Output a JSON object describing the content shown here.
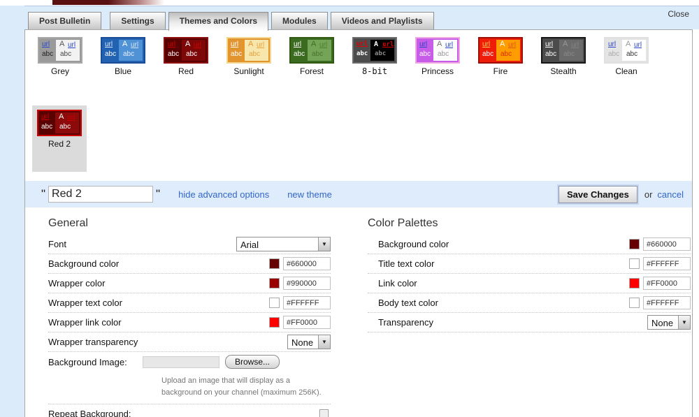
{
  "window": {
    "close": "Close"
  },
  "tabs": [
    {
      "label": "Post Bulletin",
      "active": false
    },
    {
      "label": "Settings",
      "active": false
    },
    {
      "label": "Themes and Colors",
      "active": true
    },
    {
      "label": "Modules",
      "active": false
    },
    {
      "label": "Videos and Playlists",
      "active": false
    }
  ],
  "theme_glyphs": {
    "link": "url",
    "text": "abc",
    "a": "A"
  },
  "themes": [
    {
      "label": "Grey",
      "colors": {
        "border": "#a8a8a8",
        "outer": "#9a9a9a",
        "inner": "#f2f2f2",
        "outer_link": "#2a46c8",
        "outer_text": "#222222",
        "inner_a": "#555555",
        "inner_link": "#2a46c8",
        "inner_text": "#444444"
      }
    },
    {
      "label": "Blue",
      "colors": {
        "border": "#1b4d97",
        "outer": "#2163b2",
        "inner": "#5092d6",
        "outer_link": "#dce6ff",
        "outer_text": "#ffffff",
        "inner_a": "#ffffff",
        "inner_link": "#d8e6f8",
        "inner_text": "#e6eefc"
      }
    },
    {
      "label": "Red",
      "colors": {
        "border": "#8d1111",
        "outer": "#5a0202",
        "inner": "#7e0808",
        "outer_link": "#cc0000",
        "outer_text": "#ffffff",
        "inner_a": "#ffffff",
        "inner_link": "#cc0000",
        "inner_text": "#ffffff"
      }
    },
    {
      "label": "Sunlight",
      "colors": {
        "border": "#f4d78c",
        "outer": "#e2952f",
        "inner": "#f8e7ad",
        "outer_link": "#ffffff",
        "outer_text": "#ffffff",
        "inner_a": "#e2952f",
        "inner_link": "#e8a33d",
        "inner_text": "#e2a23f"
      }
    },
    {
      "label": "Forest",
      "colors": {
        "border": "#2e5b14",
        "outer": "#3a6b1f",
        "inner": "#74a457",
        "outer_link": "#ffffff",
        "outer_text": "#ffffff",
        "inner_a": "#3f7022",
        "inner_link": "#4a7f2a",
        "inner_text": "#47752a"
      }
    },
    {
      "label": "8-bit",
      "mono": true,
      "colors": {
        "border": "#6e6e6e",
        "outer": "#4c4c4c",
        "inner": "#000000",
        "outer_link": "#dd0000",
        "outer_text": "#ffffff",
        "inner_a": "#ffffff",
        "inner_link": "#dd0000",
        "inner_text": "#8a8a8a"
      }
    },
    {
      "label": "Princess",
      "colors": {
        "border": "#f0a8e0",
        "outer": "#c75ce8",
        "inner": "#fcfcfc",
        "outer_link": "#2a46c8",
        "outer_text": "#ffffff",
        "inner_a": "#777777",
        "inner_link": "#2a46c8",
        "inner_text": "#999999"
      }
    },
    {
      "label": "Fire",
      "colors": {
        "border": "#9d0f05",
        "outer": "#ef1c0a",
        "inner": "#ff9c00",
        "outer_link": "#ffd24a",
        "outer_text": "#ffffff",
        "inner_a": "#ffffff",
        "inner_link": "#e05510",
        "inner_text": "#d42b0a"
      }
    },
    {
      "label": "Stealth",
      "colors": {
        "border": "#161616",
        "outer": "#4b4b4b",
        "inner": "#6b6b6b",
        "outer_link": "#ffffff",
        "outer_text": "#ffffff",
        "inner_a": "#9a9a9a",
        "inner_link": "#838383",
        "inner_text": "#888888"
      }
    },
    {
      "label": "Clean",
      "colors": {
        "border": "#e0e0e0",
        "outer": "#e4e4e4",
        "inner": "#ffffff",
        "outer_link": "#2a46c8",
        "outer_text": "#aaaaaa",
        "inner_a": "#999999",
        "inner_link": "#2a46c8",
        "inner_text": "#333333"
      }
    }
  ],
  "selected_theme": {
    "label": "Red 2",
    "colors": {
      "border": "#cc0000",
      "outer": "#5a0202",
      "inner": "#8c0a0a",
      "outer_link": "#cc0000",
      "outer_text": "#ffffff",
      "inner_a": "#ffffff",
      "inner_link": "#cc0000",
      "inner_text": "#ffffff"
    }
  },
  "name_bar": {
    "open_quote": "\"",
    "value": "Red 2",
    "close_quote": "\"",
    "hide_advanced": "hide advanced options",
    "new_theme": "new theme",
    "save": "Save Changes",
    "or": "or",
    "cancel": "cancel"
  },
  "sections": {
    "general": {
      "title": "General",
      "rows": [
        {
          "label": "Font",
          "control": {
            "type": "select",
            "value": "Arial",
            "width": 135
          }
        },
        {
          "label": "Background color",
          "control": {
            "type": "color",
            "hex": "#660000"
          }
        },
        {
          "label": "Wrapper color",
          "control": {
            "type": "color",
            "hex": "#990000"
          }
        },
        {
          "label": "Wrapper text color",
          "control": {
            "type": "color",
            "hex": "#FFFFFF"
          }
        },
        {
          "label": "Wrapper link color",
          "control": {
            "type": "color",
            "hex": "#FF0000"
          }
        },
        {
          "label": "Wrapper transparency",
          "control": {
            "type": "select",
            "value": "None",
            "width": 62
          }
        },
        {
          "label": "Background Image:",
          "no_sep": true,
          "control": {
            "type": "file",
            "browse": "Browse..."
          }
        },
        {
          "label": "",
          "control": {
            "type": "hint",
            "text": "Upload an image that will display as a background on your channel (maximum 256K)."
          }
        },
        {
          "label": "Repeat Background:",
          "control": {
            "type": "checkbox",
            "checked": false
          }
        }
      ]
    },
    "palettes": {
      "title": "Color Palettes",
      "rows": [
        {
          "label": "Background color",
          "control": {
            "type": "color",
            "hex": "#660000"
          }
        },
        {
          "label": "Title text color",
          "control": {
            "type": "color",
            "hex": "#FFFFFF"
          }
        },
        {
          "label": "Link color",
          "control": {
            "type": "color",
            "hex": "#FF0000"
          }
        },
        {
          "label": "Body text color",
          "control": {
            "type": "color",
            "hex": "#FFFFFF"
          }
        },
        {
          "label": "Transparency",
          "control": {
            "type": "select",
            "value": "None",
            "width": 62
          }
        }
      ]
    }
  }
}
